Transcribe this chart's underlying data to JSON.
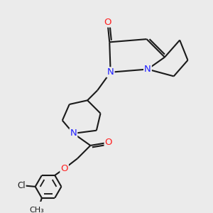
{
  "bg_color": "#ebebeb",
  "bond_color": "#1a1a1a",
  "bond_width": 1.5,
  "atom_colors": {
    "N": "#2020ff",
    "O": "#ff2020",
    "Cl": "#1a1a1a",
    "C": "#1a1a1a"
  },
  "font_size_atom": 9.5,
  "font_size_small": 8.5
}
